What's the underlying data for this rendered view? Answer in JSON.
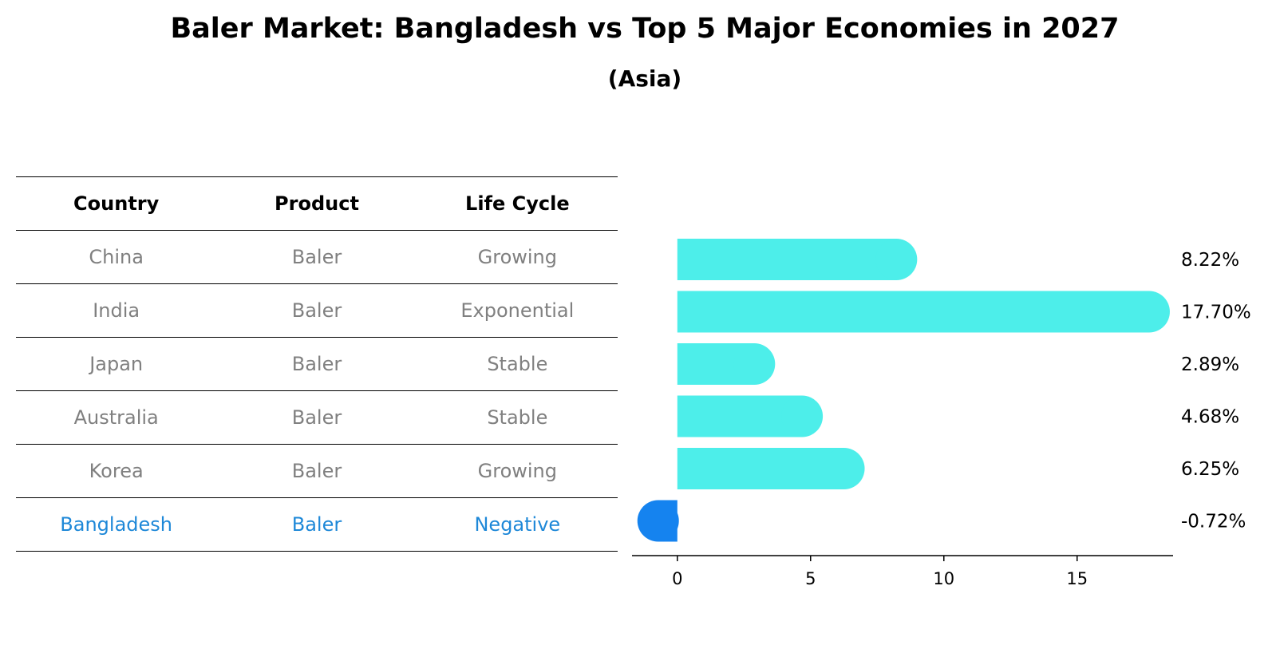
{
  "chart_data": {
    "type": "bar",
    "orientation": "horizontal",
    "title": "Baler Market: Bangladesh vs Top 5 Major Economies in 2027",
    "subtitle": "(Asia)",
    "categories": [
      "China",
      "India",
      "Japan",
      "Australia",
      "Korea",
      "Bangladesh"
    ],
    "values": [
      8.22,
      17.7,
      2.89,
      4.68,
      6.25,
      -0.72
    ],
    "value_labels": [
      "8.22%",
      "17.70%",
      "2.89%",
      "4.68%",
      "6.25%",
      "-0.72%"
    ],
    "xticks": [
      "0",
      "5",
      "10",
      "15"
    ],
    "xlim": [
      -1.7,
      18.6
    ],
    "xlabel": "",
    "ylabel": "",
    "bar_color": "#4deeea",
    "highlight_color": "#1583ef"
  },
  "table": {
    "headers": [
      "Country",
      "Product",
      "Life Cycle"
    ],
    "rows": [
      [
        "China",
        "Baler",
        "Growing"
      ],
      [
        "India",
        "Baler",
        "Exponential"
      ],
      [
        "Japan",
        "Baler",
        "Stable"
      ],
      [
        "Australia",
        "Baler",
        "Stable"
      ],
      [
        "Korea",
        "Baler",
        "Growing"
      ],
      [
        "Bangladesh",
        "Baler",
        "Negative"
      ]
    ],
    "highlight_row": 5,
    "text_color": "#808080",
    "highlight_text_color": "#1e88d8"
  }
}
